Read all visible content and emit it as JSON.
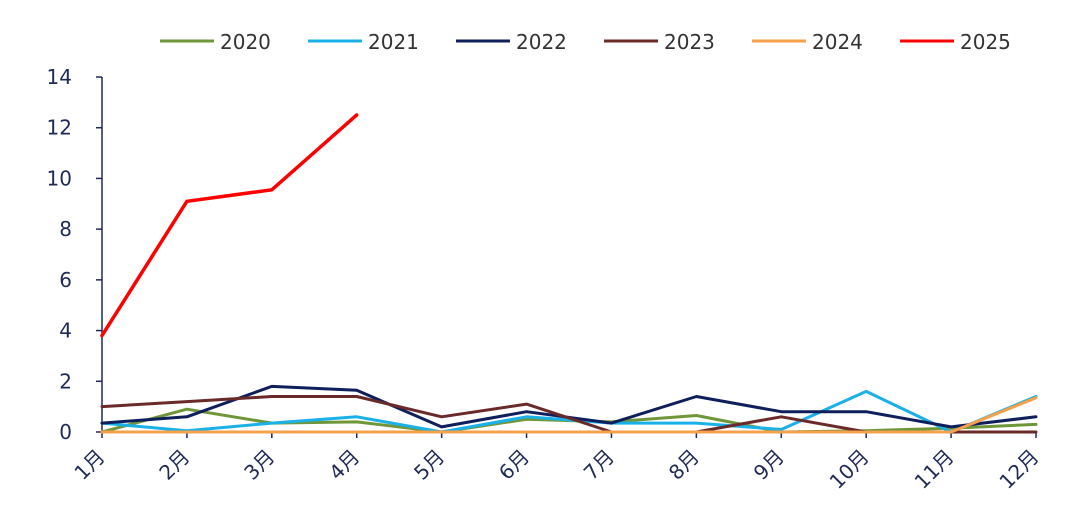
{
  "chart_data": {
    "type": "line",
    "title": "",
    "xlabel": "",
    "ylabel": "",
    "categories": [
      "1月",
      "2月",
      "3月",
      "4月",
      "5月",
      "6月",
      "7月",
      "8月",
      "9月",
      "10月",
      "11月",
      "12月"
    ],
    "ylim": [
      0,
      14
    ],
    "yticks": [
      0,
      2,
      4,
      6,
      8,
      10,
      12,
      14
    ],
    "grid": false,
    "legend_position": "top",
    "series": [
      {
        "name": "2020",
        "color": "#70963a",
        "values": [
          0.0,
          0.9,
          0.35,
          0.4,
          0.0,
          0.5,
          0.4,
          0.65,
          0.0,
          0.05,
          0.15,
          0.3
        ]
      },
      {
        "name": "2021",
        "color": "#1ab0e8",
        "values": [
          0.35,
          0.05,
          0.35,
          0.6,
          0.0,
          0.6,
          0.35,
          0.35,
          0.1,
          1.6,
          0.0,
          1.4
        ]
      },
      {
        "name": "2022",
        "color": "#0f1f5c",
        "values": [
          0.35,
          0.6,
          1.8,
          1.65,
          0.2,
          0.8,
          0.35,
          1.4,
          0.8,
          0.8,
          0.2,
          0.6
        ]
      },
      {
        "name": "2023",
        "color": "#6a2a2a",
        "values": [
          1.0,
          1.2,
          1.4,
          1.4,
          0.6,
          1.1,
          0.0,
          0.0,
          0.6,
          0.0,
          0.0,
          0.0
        ]
      },
      {
        "name": "2024",
        "color": "#f5a04a",
        "values": [
          0.0,
          0.0,
          0.0,
          0.0,
          0.0,
          0.0,
          0.0,
          0.0,
          0.0,
          0.0,
          0.0,
          1.35
        ]
      },
      {
        "name": "2025",
        "color": "#ff0000",
        "values": [
          3.8,
          9.1,
          9.55,
          12.5,
          null,
          null,
          null,
          null,
          null,
          null,
          null,
          null
        ]
      }
    ]
  }
}
